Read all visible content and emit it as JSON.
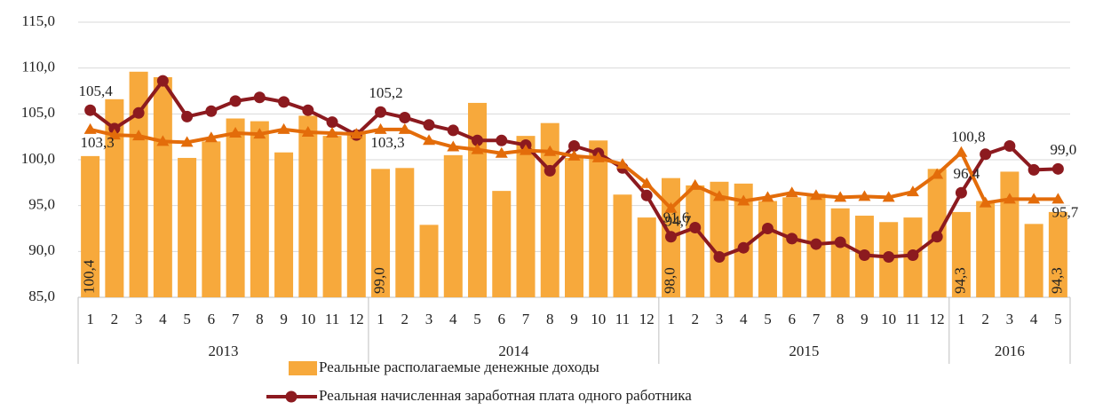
{
  "chart_data": {
    "type": "bar",
    "categories": [
      "1",
      "2",
      "3",
      "4",
      "5",
      "6",
      "7",
      "8",
      "9",
      "10",
      "11",
      "12",
      "1",
      "2",
      "3",
      "4",
      "5",
      "6",
      "7",
      "8",
      "9",
      "10",
      "11",
      "12",
      "1",
      "2",
      "3",
      "4",
      "5",
      "6",
      "7",
      "8",
      "9",
      "10",
      "11",
      "12",
      "1",
      "2",
      "3",
      "4",
      "5"
    ],
    "category_groups": [
      "2013",
      "2014",
      "2015",
      "2016"
    ],
    "ylim": [
      85,
      115
    ],
    "yticks": [
      {
        "value": 85,
        "label": "85,0"
      },
      {
        "value": 90,
        "label": "90,0"
      },
      {
        "value": 95,
        "label": "95,0"
      },
      {
        "value": 100,
        "label": "100,0"
      },
      {
        "value": 105,
        "label": "105,0"
      },
      {
        "value": 110,
        "label": "110,0"
      },
      {
        "value": 115,
        "label": "115,0"
      }
    ],
    "grid": true,
    "series": [
      {
        "name": "Реальные располагаемые денежные доходы",
        "type": "bar",
        "color": "#f7a93c",
        "values": [
          100.4,
          106.6,
          109.6,
          109.0,
          100.2,
          102.0,
          104.5,
          104.2,
          100.8,
          104.8,
          102.6,
          102.8,
          99.0,
          99.1,
          92.9,
          100.5,
          106.2,
          96.6,
          102.6,
          104.0,
          100.2,
          102.1,
          96.2,
          93.7,
          98.0,
          97.2,
          97.6,
          97.4,
          95.5,
          95.9,
          96.3,
          94.7,
          93.9,
          93.2,
          93.7,
          99.0,
          94.3,
          95.5,
          98.7,
          93.0,
          94.3
        ],
        "value_labels": [
          "100,4",
          null,
          null,
          null,
          null,
          null,
          null,
          null,
          null,
          null,
          null,
          null,
          "99,0",
          null,
          null,
          null,
          null,
          null,
          null,
          null,
          null,
          null,
          null,
          null,
          "98,0",
          null,
          null,
          null,
          null,
          null,
          null,
          null,
          null,
          null,
          null,
          null,
          "94,3",
          null,
          null,
          null,
          "94,3"
        ]
      },
      {
        "name": "Реальная начисленная заработная плата одного работника",
        "type": "line",
        "marker": "circle",
        "color": "#8c1a1f",
        "values": [
          105.4,
          103.4,
          105.1,
          108.6,
          104.7,
          105.3,
          106.4,
          106.8,
          106.3,
          105.4,
          104.1,
          102.7,
          105.2,
          104.6,
          103.8,
          103.2,
          102.1,
          102.1,
          101.6,
          98.8,
          101.5,
          100.7,
          99.1,
          96.1,
          91.6,
          92.6,
          89.4,
          90.4,
          92.5,
          91.4,
          90.8,
          91.0,
          89.6,
          89.4,
          89.6,
          91.6,
          96.4,
          100.6,
          101.5,
          98.9,
          99.0
        ],
        "value_labels": [
          "105,4",
          null,
          null,
          null,
          null,
          null,
          null,
          null,
          null,
          null,
          null,
          null,
          "105,2",
          null,
          null,
          null,
          null,
          null,
          null,
          null,
          null,
          null,
          null,
          null,
          "91,6",
          null,
          null,
          null,
          null,
          null,
          null,
          null,
          null,
          null,
          null,
          null,
          "96,4",
          null,
          null,
          null,
          "99,0"
        ]
      },
      {
        "type": "line",
        "marker": "triangle",
        "color": "#e36c0a",
        "values": [
          103.3,
          102.7,
          102.6,
          102.0,
          101.9,
          102.4,
          102.9,
          102.8,
          103.3,
          103.0,
          102.9,
          102.8,
          103.3,
          103.3,
          102.1,
          101.4,
          101.1,
          100.7,
          101.0,
          100.9,
          100.4,
          100.2,
          99.5,
          97.4,
          94.7,
          97.2,
          96.0,
          95.5,
          95.9,
          96.4,
          96.1,
          95.9,
          96.0,
          95.9,
          96.5,
          98.4,
          100.8,
          95.3,
          95.7,
          95.7,
          95.7
        ],
        "value_labels": [
          "103,3",
          null,
          null,
          null,
          null,
          null,
          null,
          null,
          null,
          null,
          null,
          null,
          "103,3",
          null,
          null,
          null,
          null,
          null,
          null,
          null,
          null,
          null,
          null,
          null,
          "94,7",
          null,
          null,
          null,
          null,
          null,
          null,
          null,
          null,
          null,
          null,
          null,
          "100,8",
          null,
          null,
          null,
          "95,7"
        ]
      }
    ]
  }
}
